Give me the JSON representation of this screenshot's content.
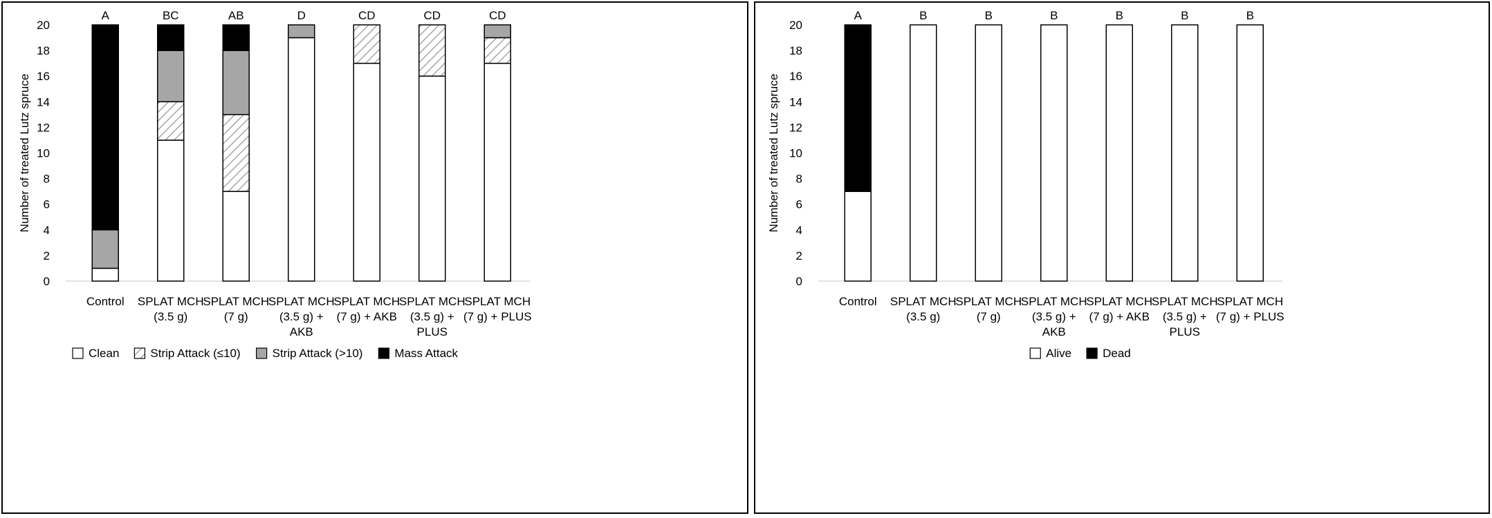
{
  "colors": {
    "clean": "#ffffff",
    "strip_small": "hatch",
    "strip_large": "#a6a6a6",
    "mass": "#000000",
    "alive": "#ffffff",
    "dead": "#000000",
    "gridline": "#d9d9d9"
  },
  "chart_data": [
    {
      "type": "bar",
      "stacked": true,
      "ylabel": "Number of treated Lutz spruce",
      "ylim": [
        0,
        20
      ],
      "yticks": [
        "0",
        "2",
        "4",
        "6",
        "8",
        "10",
        "12",
        "14",
        "16",
        "18",
        "20"
      ],
      "grid": false,
      "legend_position": "bottom",
      "categories": [
        [
          "Control"
        ],
        [
          "SPLAT MCH",
          "(3.5 g)"
        ],
        [
          "SPLAT MCH",
          "(7 g)"
        ],
        [
          "SPLAT MCH",
          "(3.5 g) +",
          "AKB"
        ],
        [
          "SPLAT MCH",
          "(7 g) + AKB"
        ],
        [
          "SPLAT MCH",
          "(3.5 g) +",
          "PLUS"
        ],
        [
          "SPLAT MCH",
          "(7 g) + PLUS"
        ]
      ],
      "letters": [
        "A",
        "BC",
        "AB",
        "D",
        "CD",
        "CD",
        "CD"
      ],
      "series": [
        {
          "name": "Clean",
          "style": "clean",
          "values": [
            1,
            11,
            7,
            19,
            17,
            16,
            17
          ]
        },
        {
          "name": "Strip Attack (≤10)",
          "style": "strip_small",
          "values": [
            0,
            3,
            6,
            0,
            3,
            4,
            2
          ]
        },
        {
          "name": "Strip Attack (>10)",
          "style": "strip_large",
          "values": [
            3,
            4,
            5,
            1,
            0,
            0,
            1
          ]
        },
        {
          "name": "Mass Attack",
          "style": "mass",
          "values": [
            16,
            2,
            2,
            0,
            0,
            0,
            0
          ]
        }
      ]
    },
    {
      "type": "bar",
      "stacked": true,
      "ylabel": "Number of treated Lutz spruce",
      "ylim": [
        0,
        20
      ],
      "yticks": [
        "0",
        "2",
        "4",
        "6",
        "8",
        "10",
        "12",
        "14",
        "16",
        "18",
        "20"
      ],
      "grid": false,
      "legend_position": "bottom",
      "categories": [
        [
          "Control"
        ],
        [
          "SPLAT MCH",
          "(3.5 g)"
        ],
        [
          "SPLAT MCH",
          "(7 g)"
        ],
        [
          "SPLAT MCH",
          "(3.5 g) +",
          "AKB"
        ],
        [
          "SPLAT MCH",
          "(7 g) + AKB"
        ],
        [
          "SPLAT MCH",
          "(3.5 g) +",
          "PLUS"
        ],
        [
          "SPLAT MCH",
          "(7 g) + PLUS"
        ]
      ],
      "letters": [
        "A",
        "B",
        "B",
        "B",
        "B",
        "B",
        "B"
      ],
      "series": [
        {
          "name": "Alive",
          "style": "alive",
          "values": [
            7,
            20,
            20,
            20,
            20,
            20,
            20
          ]
        },
        {
          "name": "Dead",
          "style": "dead",
          "values": [
            13,
            0,
            0,
            0,
            0,
            0,
            0
          ]
        }
      ]
    }
  ]
}
